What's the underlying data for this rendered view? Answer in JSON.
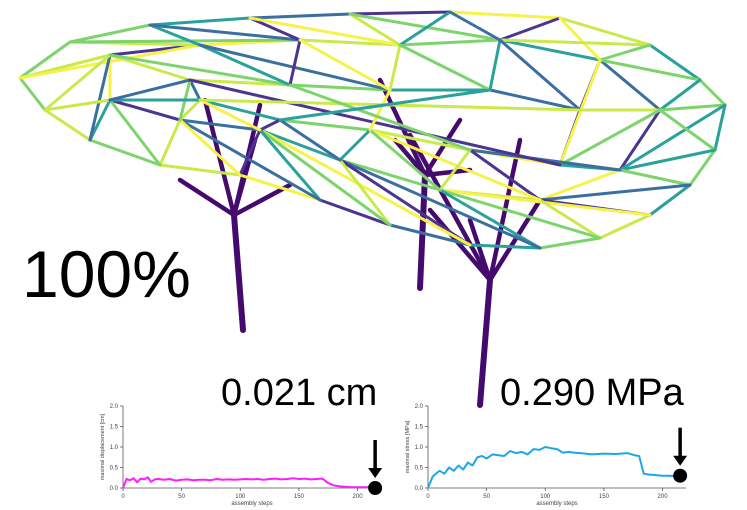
{
  "progress_label": "100%",
  "colors": {
    "dark": "#450a6e",
    "purple": "#4b3590",
    "blue": "#3a6fa0",
    "teal": "#2aa19a",
    "green": "#7ed46c",
    "lime": "#c9ea4a",
    "yellow": "#f6f24a",
    "magenta": "#ff1dff",
    "cyan": "#1ea7e6"
  },
  "displacement": {
    "value_label": "0.021 cm"
  },
  "stress": {
    "value_label": "0.290 MPa"
  },
  "chart_data": [
    {
      "type": "line",
      "title": "",
      "xlabel": "assembly steps",
      "ylabel": "maximal displacement [cm]",
      "xlim": [
        0,
        220
      ],
      "ylim": [
        0,
        2.0
      ],
      "xticks": [
        "0",
        "50",
        "100",
        "150",
        "200"
      ],
      "yticks": [
        "0.0",
        "0.5",
        "1.0",
        "1.5",
        "2.0"
      ],
      "series": [
        {
          "name": "displacement",
          "color": "#ff1dff",
          "x": [
            0,
            3,
            6,
            9,
            12,
            15,
            18,
            21,
            24,
            27,
            30,
            35,
            40,
            45,
            50,
            55,
            60,
            65,
            70,
            75,
            80,
            85,
            90,
            95,
            100,
            105,
            110,
            115,
            120,
            125,
            130,
            135,
            140,
            145,
            150,
            155,
            160,
            165,
            170,
            175,
            180,
            185,
            190,
            195,
            200,
            205,
            210,
            215
          ],
          "y": [
            0.0,
            0.22,
            0.19,
            0.24,
            0.14,
            0.23,
            0.21,
            0.26,
            0.15,
            0.21,
            0.22,
            0.2,
            0.22,
            0.18,
            0.2,
            0.21,
            0.19,
            0.2,
            0.2,
            0.19,
            0.22,
            0.2,
            0.21,
            0.2,
            0.21,
            0.22,
            0.21,
            0.22,
            0.2,
            0.22,
            0.23,
            0.21,
            0.22,
            0.24,
            0.22,
            0.23,
            0.21,
            0.22,
            0.23,
            0.12,
            0.06,
            0.04,
            0.03,
            0.02,
            0.02,
            0.02,
            0.02,
            0.02
          ]
        }
      ],
      "marker": {
        "x": 215,
        "y": 0.0,
        "arrow": true
      }
    },
    {
      "type": "line",
      "title": "",
      "xlabel": "assembly steps",
      "ylabel": "maximal stress [MPa]",
      "xlim": [
        0,
        220
      ],
      "ylim": [
        0,
        2.0
      ],
      "xticks": [
        "0",
        "50",
        "100",
        "150",
        "200"
      ],
      "yticks": [
        "0.0",
        "0.5",
        "1.0",
        "1.5",
        "2.0"
      ],
      "series": [
        {
          "name": "stress",
          "color": "#1ea7e6",
          "x": [
            0,
            4,
            8,
            10,
            14,
            18,
            22,
            26,
            30,
            34,
            38,
            42,
            46,
            50,
            55,
            60,
            65,
            70,
            75,
            80,
            85,
            90,
            95,
            100,
            105,
            110,
            115,
            120,
            125,
            130,
            140,
            150,
            160,
            170,
            176,
            180,
            184,
            188,
            192,
            200,
            205,
            210,
            215
          ],
          "y": [
            0.0,
            0.28,
            0.38,
            0.42,
            0.35,
            0.5,
            0.42,
            0.55,
            0.45,
            0.62,
            0.55,
            0.75,
            0.78,
            0.72,
            0.82,
            0.8,
            0.78,
            0.9,
            0.85,
            0.88,
            0.82,
            0.95,
            0.93,
            1.0,
            0.97,
            0.95,
            0.86,
            0.88,
            0.86,
            0.85,
            0.82,
            0.84,
            0.83,
            0.85,
            0.8,
            0.78,
            0.35,
            0.33,
            0.32,
            0.3,
            0.3,
            0.29,
            0.29
          ]
        }
      ],
      "marker": {
        "x": 215,
        "y": 0.3,
        "arrow": true
      }
    }
  ]
}
